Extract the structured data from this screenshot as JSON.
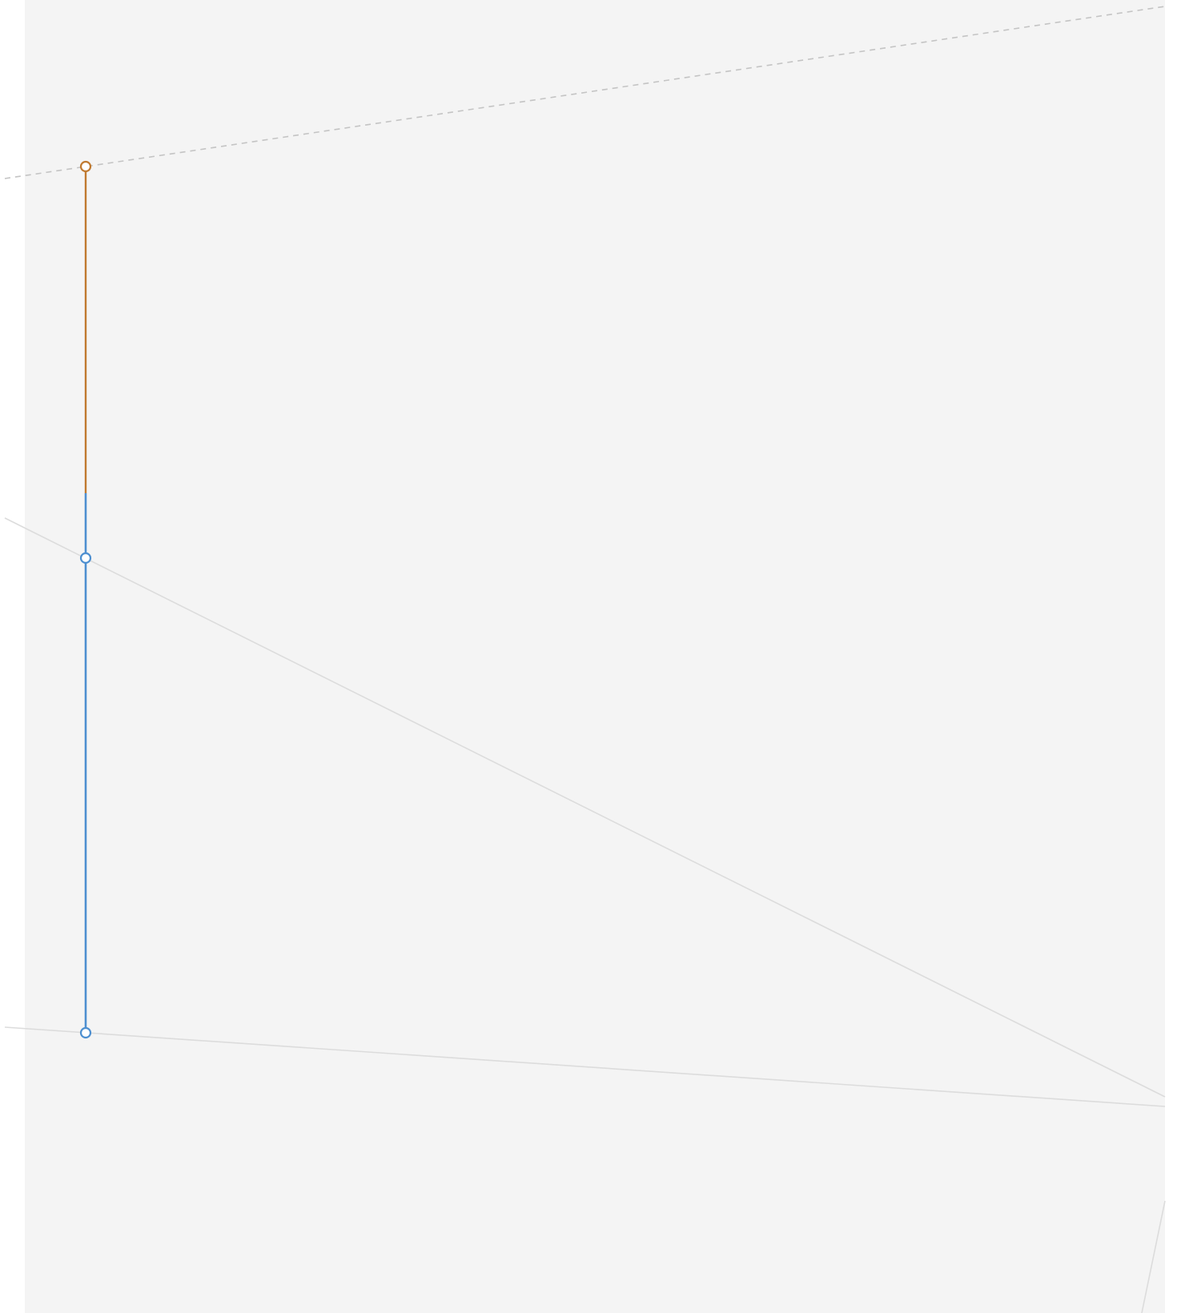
{
  "canvas": {
    "background": "#f4f4f4",
    "page_background": "#ffffff"
  },
  "colors": {
    "guide_dashed": "#c4c4c4",
    "guide_solid": "#dcdcdc",
    "orange_segment": "#c07a30",
    "blue_segment": "#4d8fd0",
    "handle_fill": "#ffffff"
  },
  "icons": {
    "handle": "hollow-circle"
  }
}
